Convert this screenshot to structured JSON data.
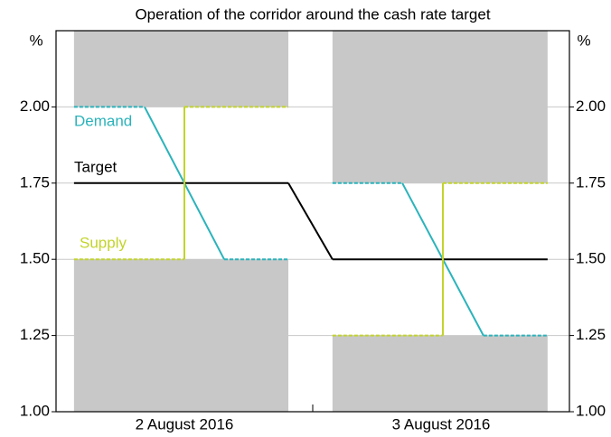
{
  "chart_data": {
    "type": "corridor",
    "subtitle": "Operation of the corridor around the cash rate target",
    "y_unit": "%",
    "categories": [
      "2 August 2016",
      "3 August 2016"
    ],
    "category_x": [
      0.5,
      1.5
    ],
    "xlim": [
      0,
      2
    ],
    "xticks": [
      0,
      1,
      2
    ],
    "ylim": [
      1.0,
      2.25
    ],
    "yticks": [
      {
        "value": 1.0,
        "label": "1.00"
      },
      {
        "value": 1.25,
        "label": "1.25"
      },
      {
        "value": 1.5,
        "label": "1.50"
      },
      {
        "value": 1.75,
        "label": "1.75"
      },
      {
        "value": 2.0,
        "label": "2.00"
      }
    ],
    "grid": true,
    "band_color": "#c8c8c8",
    "bands": [
      {
        "x": [
          0.07,
          0.905
        ],
        "y": [
          2.0,
          2.25
        ]
      },
      {
        "x": [
          0.07,
          0.905
        ],
        "y": [
          1.0,
          1.5
        ]
      },
      {
        "x": [
          1.077,
          1.915
        ],
        "y": [
          1.75,
          2.25
        ]
      },
      {
        "x": [
          1.077,
          1.915
        ],
        "y": [
          1.0,
          1.25
        ]
      }
    ],
    "series": [
      {
        "name": "Target",
        "color": "#000000",
        "x": [
          0.07,
          0.905,
          1.077,
          1.915
        ],
        "values": [
          1.75,
          1.75,
          1.5,
          1.5
        ]
      },
      {
        "name": "Demand",
        "color": "#2bb3bb",
        "x": [
          0.07,
          0.345,
          0.655,
          0.905,
          null,
          1.077,
          1.349,
          1.665,
          1.915
        ],
        "values": [
          2.0,
          2.0,
          1.5,
          1.5,
          null,
          1.75,
          1.75,
          1.25,
          1.25
        ]
      },
      {
        "name": "Supply",
        "color": "#c2d42a",
        "x": [
          0.07,
          0.5,
          0.5,
          0.905,
          null,
          1.077,
          1.507,
          1.507,
          1.915
        ],
        "values": [
          1.5,
          1.5,
          2.0,
          2.0,
          null,
          1.25,
          1.25,
          1.75,
          1.75
        ]
      }
    ]
  }
}
